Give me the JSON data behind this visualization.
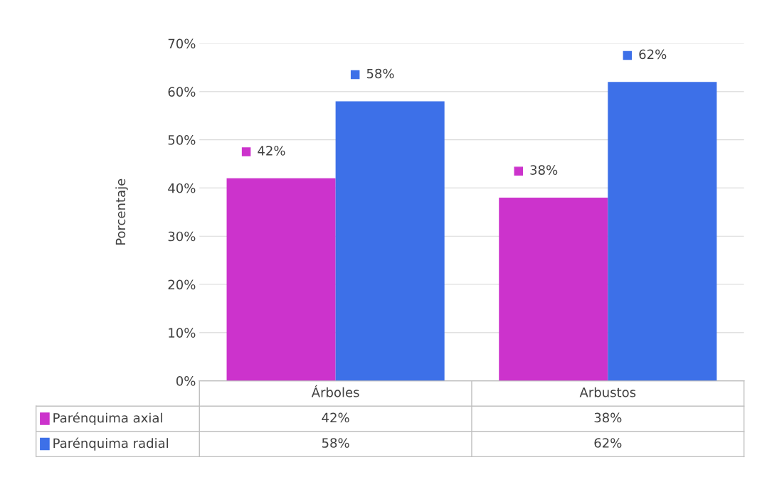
{
  "chart_data": {
    "type": "bar",
    "ylabel": "Porcentaje",
    "categories": [
      "Árboles",
      "Arbustos"
    ],
    "series": [
      {
        "name": "Parénquima axial",
        "color": "#cc33cc",
        "values": [
          42,
          38
        ],
        "value_labels": [
          "42%",
          "38%"
        ]
      },
      {
        "name": "Parénquima radial",
        "color": "#3d70e8",
        "values": [
          58,
          62
        ],
        "value_labels": [
          "58%",
          "62%"
        ]
      }
    ],
    "ylim": [
      0,
      70
    ],
    "yticks": [
      {
        "value": 0,
        "label": "0%"
      },
      {
        "value": 10,
        "label": "10%"
      },
      {
        "value": 20,
        "label": "20%"
      },
      {
        "value": 30,
        "label": "30%"
      },
      {
        "value": 40,
        "label": "40%"
      },
      {
        "value": 50,
        "label": "50%"
      },
      {
        "value": 60,
        "label": "60%"
      },
      {
        "value": 70,
        "label": "70%"
      }
    ],
    "grid": "y",
    "legend": "bottom"
  }
}
